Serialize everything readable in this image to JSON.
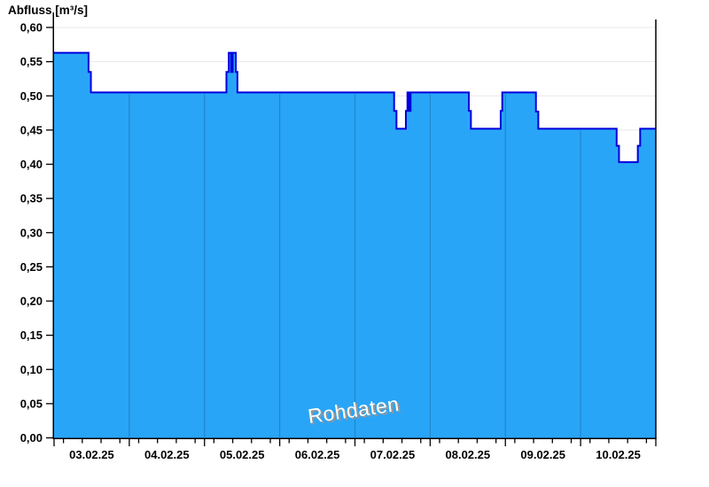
{
  "chart": {
    "title": "Abfluss [m³/s]",
    "watermark": "Rohdaten",
    "colors": {
      "background": "#FFFFFF",
      "fill": "#29A5F8",
      "edge": "#0000DC",
      "day_line": "#1F86C8",
      "grid": "#E8E8E8",
      "axis": "#000000",
      "text": "#000000",
      "watermark_fill": "#FFFFFF",
      "watermark_shadow": "#969696"
    }
  },
  "chart_data": {
    "type": "area",
    "title": "Abfluss [m³/s]",
    "ylabel": "Abfluss [m³/s]",
    "xlabel": "",
    "ylim": [
      0,
      0.6
    ],
    "grid": "horizontal-only",
    "legend": "none",
    "interpolation": "step",
    "x_axis": {
      "start": "03.02.25 00:00",
      "end": "11.02.25 00:00",
      "day_labels": [
        "03.02.25",
        "04.02.25",
        "05.02.25",
        "06.02.25",
        "07.02.25",
        "08.02.25",
        "09.02.25",
        "10.02.25"
      ],
      "minor_tick_hours": [
        3,
        9,
        15,
        21
      ]
    },
    "y_axis": {
      "ticks": [
        0.0,
        0.05,
        0.1,
        0.15,
        0.2,
        0.25,
        0.3,
        0.35,
        0.4,
        0.45,
        0.5,
        0.55,
        0.6
      ],
      "tick_labels": [
        "0,00",
        "0,05",
        "0,10",
        "0,15",
        "0,20",
        "0,25",
        "0,30",
        "0,35",
        "0,40",
        "0,45",
        "0,50",
        "0,55",
        "0,60"
      ]
    },
    "series": [
      {
        "name": "Rohdaten",
        "unit": "m³/s",
        "points": [
          [
            "03.02.25 00:00",
            0.563
          ],
          [
            "03.02.25 11:00",
            0.535
          ],
          [
            "03.02.25 11:45",
            0.505
          ],
          [
            "05.02.25 07:00",
            0.535
          ],
          [
            "05.02.25 07:45",
            0.563
          ],
          [
            "05.02.25 08:30",
            0.535
          ],
          [
            "05.02.25 09:00",
            0.563
          ],
          [
            "05.02.25 10:00",
            0.535
          ],
          [
            "05.02.25 10:30",
            0.505
          ],
          [
            "07.02.25 12:30",
            0.478
          ],
          [
            "07.02.25 13:15",
            0.452
          ],
          [
            "07.02.25 16:15",
            0.478
          ],
          [
            "07.02.25 16:45",
            0.505
          ],
          [
            "07.02.25 17:15",
            0.478
          ],
          [
            "07.02.25 17:45",
            0.505
          ],
          [
            "08.02.25 12:20",
            0.478
          ],
          [
            "08.02.25 13:00",
            0.452
          ],
          [
            "08.02.25 22:30",
            0.478
          ],
          [
            "08.02.25 23:00",
            0.505
          ],
          [
            "09.02.25 09:45",
            0.477
          ],
          [
            "09.02.25 10:30",
            0.452
          ],
          [
            "10.02.25 11:30",
            0.427
          ],
          [
            "10.02.25 12:15",
            0.403
          ],
          [
            "10.02.25 18:15",
            0.427
          ],
          [
            "10.02.25 19:00",
            0.452
          ],
          [
            "11.02.25 00:00",
            0.452
          ]
        ]
      }
    ]
  }
}
